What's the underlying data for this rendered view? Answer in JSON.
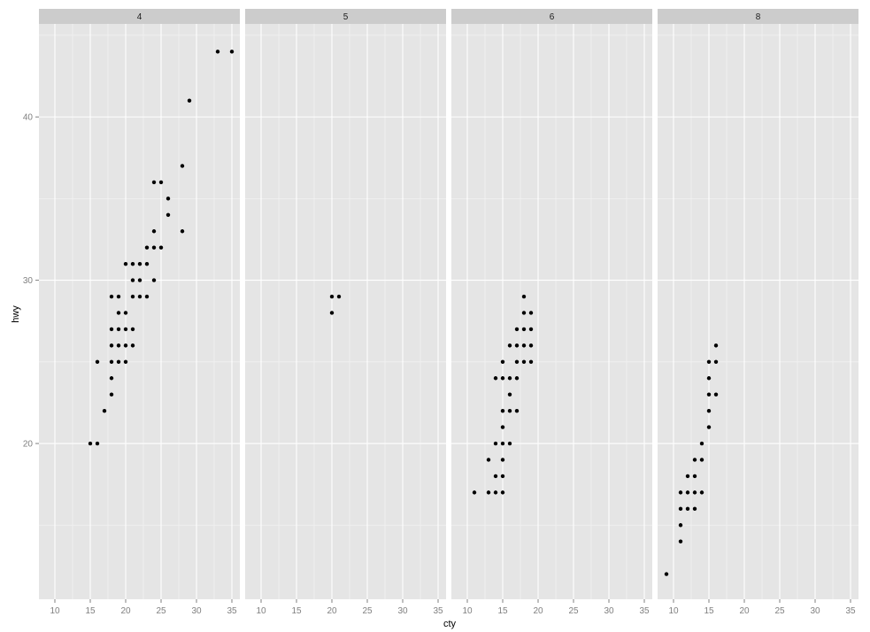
{
  "chart_data": {
    "type": "scatter",
    "title": "",
    "xlabel": "cty",
    "ylabel": "hwy",
    "facet_by": "cyl",
    "facets": [
      "4",
      "5",
      "6",
      "8"
    ],
    "xlim": [
      7.75,
      36.125
    ],
    "ylim": [
      10.46,
      45.7
    ],
    "x_ticks": [
      10,
      15,
      20,
      25,
      30,
      35
    ],
    "y_ticks": [
      20,
      30,
      40
    ],
    "grid": true,
    "legend": "none",
    "panels": [
      {
        "facet": "4",
        "points": [
          [
            15,
            20
          ],
          [
            16,
            20
          ],
          [
            17,
            22
          ],
          [
            18,
            23
          ],
          [
            18,
            24
          ],
          [
            16,
            25
          ],
          [
            18,
            25
          ],
          [
            19,
            25
          ],
          [
            20,
            25
          ],
          [
            18,
            26
          ],
          [
            19,
            26
          ],
          [
            20,
            26
          ],
          [
            21,
            26
          ],
          [
            18,
            27
          ],
          [
            19,
            27
          ],
          [
            20,
            27
          ],
          [
            21,
            27
          ],
          [
            19,
            28
          ],
          [
            20,
            28
          ],
          [
            18,
            29
          ],
          [
            19,
            29
          ],
          [
            21,
            29
          ],
          [
            22,
            29
          ],
          [
            23,
            29
          ],
          [
            21,
            30
          ],
          [
            22,
            30
          ],
          [
            24,
            30
          ],
          [
            20,
            31
          ],
          [
            21,
            31
          ],
          [
            22,
            31
          ],
          [
            23,
            31
          ],
          [
            23,
            32
          ],
          [
            24,
            32
          ],
          [
            25,
            32
          ],
          [
            24,
            33
          ],
          [
            28,
            33
          ],
          [
            26,
            34
          ],
          [
            26,
            35
          ],
          [
            24,
            36
          ],
          [
            25,
            36
          ],
          [
            28,
            37
          ],
          [
            29,
            41
          ],
          [
            33,
            44
          ],
          [
            35,
            44
          ]
        ]
      },
      {
        "facet": "5",
        "points": [
          [
            20,
            28
          ],
          [
            20,
            29
          ],
          [
            21,
            29
          ]
        ]
      },
      {
        "facet": "6",
        "points": [
          [
            11,
            17
          ],
          [
            13,
            17
          ],
          [
            14,
            17
          ],
          [
            15,
            17
          ],
          [
            14,
            18
          ],
          [
            15,
            18
          ],
          [
            13,
            19
          ],
          [
            15,
            19
          ],
          [
            14,
            20
          ],
          [
            15,
            20
          ],
          [
            16,
            20
          ],
          [
            15,
            21
          ],
          [
            15,
            22
          ],
          [
            16,
            22
          ],
          [
            17,
            22
          ],
          [
            16,
            23
          ],
          [
            14,
            24
          ],
          [
            15,
            24
          ],
          [
            16,
            24
          ],
          [
            17,
            24
          ],
          [
            15,
            25
          ],
          [
            17,
            25
          ],
          [
            18,
            25
          ],
          [
            19,
            25
          ],
          [
            16,
            26
          ],
          [
            17,
            26
          ],
          [
            18,
            26
          ],
          [
            19,
            26
          ],
          [
            17,
            27
          ],
          [
            18,
            27
          ],
          [
            19,
            27
          ],
          [
            18,
            28
          ],
          [
            19,
            28
          ],
          [
            18,
            29
          ]
        ]
      },
      {
        "facet": "8",
        "points": [
          [
            9,
            12
          ],
          [
            11,
            14
          ],
          [
            11,
            15
          ],
          [
            11,
            16
          ],
          [
            12,
            16
          ],
          [
            13,
            16
          ],
          [
            11,
            17
          ],
          [
            12,
            17
          ],
          [
            13,
            17
          ],
          [
            14,
            17
          ],
          [
            12,
            18
          ],
          [
            13,
            18
          ],
          [
            13,
            19
          ],
          [
            14,
            19
          ],
          [
            14,
            20
          ],
          [
            15,
            21
          ],
          [
            15,
            22
          ],
          [
            15,
            23
          ],
          [
            16,
            23
          ],
          [
            15,
            24
          ],
          [
            15,
            25
          ],
          [
            16,
            25
          ],
          [
            16,
            26
          ]
        ]
      }
    ]
  },
  "colors": {
    "panel_bg": "#e5e5e5",
    "strip_bg": "#cccccc",
    "grid_major": "#ffffff",
    "grid_minor": "#f2f2f2",
    "point": "#000000",
    "tick_text": "#7f7f7f"
  }
}
